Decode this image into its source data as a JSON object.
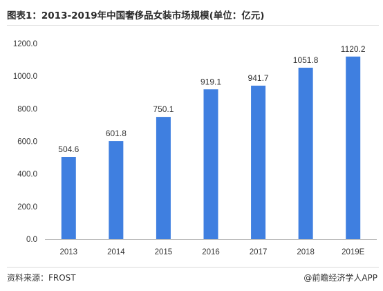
{
  "header": {
    "title": "图表1：2013-2019年中国奢侈品女装市场规模(单位：亿元)"
  },
  "footer": {
    "source": "资料来源：FROST",
    "credit": "@前瞻经济学人APP"
  },
  "colors": {
    "bar": "#3f7fe0",
    "axis": "#bfbfbf",
    "text": "#333333"
  },
  "chart_data": {
    "type": "bar",
    "title": "图表1：2013-2019年中国奢侈品女装市场规模(单位：亿元)",
    "xlabel": "",
    "ylabel": "",
    "categories": [
      "2013",
      "2014",
      "2015",
      "2016",
      "2017",
      "2018",
      "2019E"
    ],
    "values": [
      504.6,
      601.8,
      750.1,
      919.1,
      941.7,
      1051.8,
      1120.2
    ],
    "value_labels": [
      "504.6",
      "601.8",
      "750.1",
      "919.1",
      "941.7",
      "1051.8",
      "1120.2"
    ],
    "ylim": [
      0,
      1200
    ],
    "yticks": [
      0,
      200,
      400,
      600,
      800,
      1000,
      1200
    ],
    "ytick_labels": [
      "0.0",
      "200.0",
      "400.0",
      "600.0",
      "800.0",
      "1000.0",
      "1200.0"
    ],
    "grid": false,
    "legend": "none"
  }
}
